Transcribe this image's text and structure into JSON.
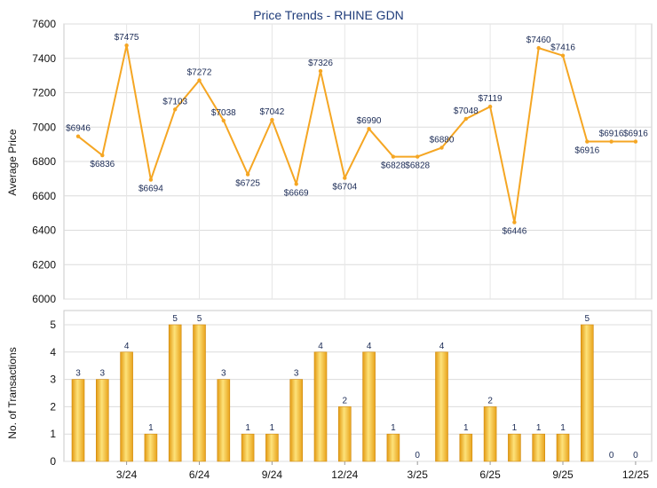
{
  "chart_data": [
    {
      "type": "line",
      "title": "Price Trends - RHINE GDN",
      "ylabel": "Average Price",
      "ylim": [
        6000,
        7600
      ],
      "yticks": [
        6000,
        6200,
        6400,
        6600,
        6800,
        7000,
        7200,
        7400,
        7600
      ],
      "grid": true,
      "color": "#f5a623",
      "series": [
        {
          "values": [
            6946,
            6836,
            7475,
            6694,
            7103,
            7272,
            7038,
            6725,
            7042,
            6669,
            7326,
            6704,
            6990,
            6828,
            6828,
            6880,
            7048,
            7119,
            6446,
            7460,
            7416,
            6916,
            6916,
            6916
          ],
          "labels": [
            "$6946",
            "$6836",
            "$7475",
            "$6694",
            "$7103",
            "$7272",
            "$7038",
            "$6725",
            "$7042",
            "$6669",
            "$7326",
            "$6704",
            "$6990",
            "$6828",
            "$6828",
            "$6880",
            "$7048",
            "$7119",
            "$6446",
            "$7460",
            "$7416",
            "$6916",
            "$6916",
            "$6916"
          ]
        }
      ]
    },
    {
      "type": "bar",
      "ylabel": "No. of Transactions",
      "ylim": [
        0,
        5
      ],
      "yticks": [
        0,
        1,
        2,
        3,
        4,
        5
      ],
      "grid": true,
      "color": "#f5b731",
      "x_tick_labels": [
        "3/24",
        "6/24",
        "9/24",
        "12/24",
        "3/25",
        "6/25",
        "9/25",
        "12/25"
      ],
      "values": [
        3,
        3,
        4,
        1,
        5,
        5,
        3,
        1,
        1,
        3,
        4,
        2,
        4,
        1,
        0,
        4,
        1,
        2,
        1,
        1,
        1,
        5,
        0,
        0
      ]
    }
  ]
}
